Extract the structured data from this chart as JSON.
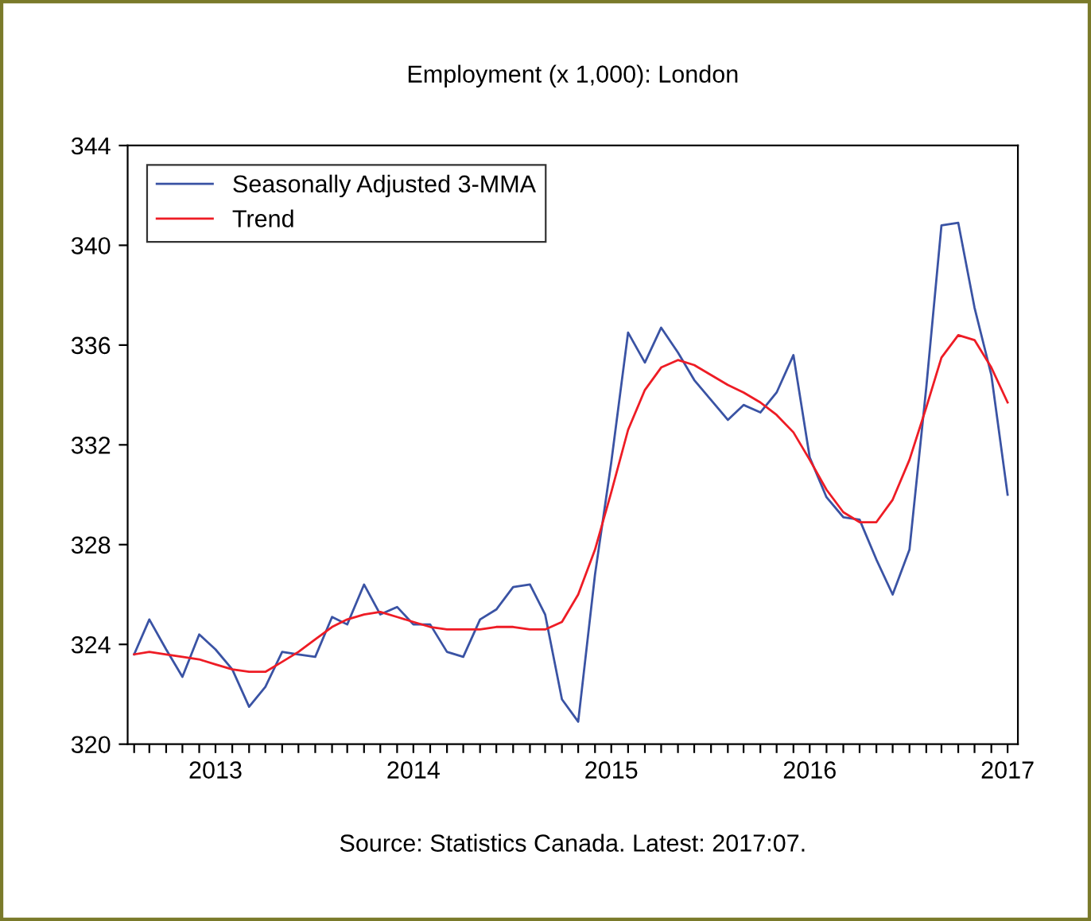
{
  "chart_data": {
    "type": "line",
    "title": "Employment (x 1,000): London",
    "x": [
      "2013-02",
      "2013-03",
      "2013-04",
      "2013-05",
      "2013-06",
      "2013-07",
      "2013-08",
      "2013-09",
      "2013-10",
      "2013-11",
      "2013-12",
      "2014-01",
      "2014-02",
      "2014-03",
      "2014-04",
      "2014-05",
      "2014-06",
      "2014-07",
      "2014-08",
      "2014-09",
      "2014-10",
      "2014-11",
      "2014-12",
      "2015-01",
      "2015-02",
      "2015-03",
      "2015-04",
      "2015-05",
      "2015-06",
      "2015-07",
      "2015-08",
      "2015-09",
      "2015-10",
      "2015-11",
      "2015-12",
      "2016-01",
      "2016-02",
      "2016-03",
      "2016-04",
      "2016-05",
      "2016-06",
      "2016-07",
      "2016-08",
      "2016-09",
      "2016-10",
      "2016-11",
      "2016-12",
      "2017-01",
      "2017-02",
      "2017-03",
      "2017-04",
      "2017-05",
      "2017-06",
      "2017-07"
    ],
    "series": [
      {
        "name": "Seasonally Adjusted 3-MMA",
        "color": "#3a53a4",
        "values": [
          323.6,
          325.0,
          323.8,
          322.7,
          324.4,
          323.8,
          323.0,
          321.5,
          322.3,
          323.7,
          323.6,
          323.5,
          325.1,
          324.8,
          326.4,
          325.2,
          325.5,
          324.8,
          324.8,
          323.7,
          323.5,
          325.0,
          325.4,
          326.3,
          326.4,
          325.2,
          321.8,
          320.9,
          326.8,
          331.3,
          336.5,
          335.3,
          336.7,
          335.7,
          334.6,
          333.8,
          333.0,
          333.6,
          333.3,
          334.1,
          335.6,
          331.5,
          329.9,
          329.1,
          329.0,
          327.4,
          326.0,
          327.8,
          334.3,
          340.8,
          340.9,
          337.5,
          334.8,
          330.0
        ]
      },
      {
        "name": "Trend",
        "color": "#ee1c25",
        "values": [
          323.6,
          323.7,
          323.6,
          323.5,
          323.4,
          323.2,
          323.0,
          322.9,
          322.9,
          323.3,
          323.7,
          324.2,
          324.7,
          325.0,
          325.2,
          325.3,
          325.1,
          324.9,
          324.7,
          324.6,
          324.6,
          324.6,
          324.7,
          324.7,
          324.6,
          324.6,
          324.9,
          326.0,
          327.8,
          330.1,
          332.6,
          334.2,
          335.1,
          335.4,
          335.2,
          334.8,
          334.4,
          334.1,
          333.7,
          333.2,
          332.5,
          331.4,
          330.2,
          329.3,
          328.9,
          328.9,
          329.8,
          331.4,
          333.5,
          335.5,
          336.4,
          336.2,
          335.1,
          333.7
        ]
      }
    ],
    "xlim": [
      "2013-01-20",
      "2017-07-20"
    ],
    "xticks": [
      {
        "value": "2013-02",
        "label": null
      },
      {
        "value": "2013-03",
        "label": null
      },
      {
        "value": "2013-04",
        "label": null
      },
      {
        "value": "2013-05",
        "label": null
      },
      {
        "value": "2013-06",
        "label": null
      },
      {
        "value": "2013-07",
        "label": "2013"
      },
      {
        "value": "2013-08",
        "label": null
      },
      {
        "value": "2013-09",
        "label": null
      },
      {
        "value": "2013-10",
        "label": null
      },
      {
        "value": "2013-11",
        "label": null
      },
      {
        "value": "2013-12",
        "label": null
      },
      {
        "value": "2014-01",
        "label": null
      },
      {
        "value": "2014-02",
        "label": null
      },
      {
        "value": "2014-03",
        "label": null
      },
      {
        "value": "2014-04",
        "label": null
      },
      {
        "value": "2014-05",
        "label": null
      },
      {
        "value": "2014-06",
        "label": null
      },
      {
        "value": "2014-07",
        "label": "2014"
      },
      {
        "value": "2014-08",
        "label": null
      },
      {
        "value": "2014-09",
        "label": null
      },
      {
        "value": "2014-10",
        "label": null
      },
      {
        "value": "2014-11",
        "label": null
      },
      {
        "value": "2014-12",
        "label": null
      },
      {
        "value": "2015-01",
        "label": null
      },
      {
        "value": "2015-02",
        "label": null
      },
      {
        "value": "2015-03",
        "label": null
      },
      {
        "value": "2015-04",
        "label": null
      },
      {
        "value": "2015-05",
        "label": null
      },
      {
        "value": "2015-06",
        "label": null
      },
      {
        "value": "2015-07",
        "label": "2015"
      },
      {
        "value": "2015-08",
        "label": null
      },
      {
        "value": "2015-09",
        "label": null
      },
      {
        "value": "2015-10",
        "label": null
      },
      {
        "value": "2015-11",
        "label": null
      },
      {
        "value": "2015-12",
        "label": null
      },
      {
        "value": "2016-01",
        "label": null
      },
      {
        "value": "2016-02",
        "label": null
      },
      {
        "value": "2016-03",
        "label": null
      },
      {
        "value": "2016-04",
        "label": null
      },
      {
        "value": "2016-05",
        "label": null
      },
      {
        "value": "2016-06",
        "label": null
      },
      {
        "value": "2016-07",
        "label": "2016"
      },
      {
        "value": "2016-08",
        "label": null
      },
      {
        "value": "2016-09",
        "label": null
      },
      {
        "value": "2016-10",
        "label": null
      },
      {
        "value": "2016-11",
        "label": null
      },
      {
        "value": "2016-12",
        "label": null
      },
      {
        "value": "2017-01",
        "label": null
      },
      {
        "value": "2017-02",
        "label": null
      },
      {
        "value": "2017-03",
        "label": null
      },
      {
        "value": "2017-04",
        "label": null
      },
      {
        "value": "2017-05",
        "label": null
      },
      {
        "value": "2017-06",
        "label": null
      },
      {
        "value": "2017-07",
        "label": "2017"
      }
    ],
    "ylim": [
      320,
      344
    ],
    "yticks": [
      320,
      324,
      328,
      332,
      336,
      340,
      344
    ],
    "grid": false,
    "legend": "top left",
    "marker": "none",
    "line_style": "solid",
    "annotations": [
      "Source: Statistics Canada. Latest: 2017:07."
    ]
  }
}
